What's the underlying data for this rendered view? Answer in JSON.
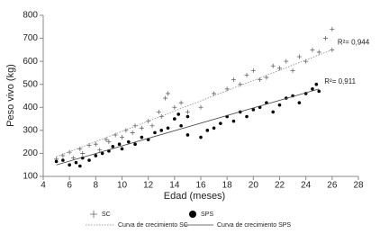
{
  "chart_data": {
    "type": "scatter",
    "x_label": "Edad (meses)",
    "y_label": "Peso vivo (kg)",
    "xlim": [
      4,
      28
    ],
    "xticks": [
      4,
      6,
      8,
      10,
      12,
      14,
      16,
      18,
      20,
      22,
      24,
      26,
      28
    ],
    "ylim": [
      100,
      800
    ],
    "yticks": [
      100,
      200,
      300,
      400,
      500,
      600,
      700,
      800
    ],
    "annotations": [
      "R²= 0,944",
      "R²= 0,911"
    ],
    "series": [
      {
        "name": "SC",
        "marker": "plus",
        "color": "#666666",
        "x": [
          5,
          5.5,
          6,
          6.3,
          6.8,
          7,
          7.5,
          8,
          8.3,
          8.8,
          9,
          9.5,
          10,
          10.3,
          10.8,
          11,
          11.5,
          12,
          12.3,
          12.8,
          13,
          13.3,
          13.5,
          14,
          14.5,
          15,
          16,
          17,
          18,
          18.5,
          19,
          19.5,
          20,
          20.5,
          21,
          21.5,
          22,
          22.5,
          23,
          23.5,
          24,
          24.5,
          25,
          25.5,
          26,
          26
        ],
        "values": [
          175,
          190,
          205,
          180,
          220,
          200,
          235,
          240,
          215,
          260,
          250,
          280,
          270,
          300,
          290,
          320,
          310,
          340,
          320,
          380,
          360,
          440,
          460,
          400,
          420,
          380,
          400,
          460,
          480,
          520,
          500,
          540,
          560,
          520,
          530,
          580,
          570,
          600,
          560,
          620,
          600,
          650,
          640,
          700,
          740,
          650
        ]
      },
      {
        "name": "SPS",
        "marker": "dot",
        "color": "#000000",
        "x": [
          5,
          5.5,
          6,
          6.5,
          6.8,
          7,
          7.5,
          8,
          8.5,
          9,
          9.3,
          9.8,
          10,
          10.5,
          11,
          11.5,
          12,
          12.5,
          13,
          13.5,
          14,
          14.3,
          14.5,
          15,
          15,
          16,
          16.5,
          17,
          17.5,
          18,
          18.5,
          19,
          19.5,
          20,
          20.5,
          21,
          21.5,
          22,
          22.5,
          23,
          23.5,
          24,
          24.5,
          25,
          24.8
        ],
        "values": [
          165,
          170,
          150,
          160,
          145,
          180,
          170,
          190,
          200,
          210,
          230,
          240,
          220,
          250,
          240,
          270,
          260,
          290,
          300,
          310,
          350,
          370,
          320,
          360,
          280,
          270,
          300,
          310,
          330,
          360,
          340,
          380,
          360,
          390,
          400,
          420,
          380,
          410,
          440,
          450,
          420,
          460,
          480,
          470,
          500
        ]
      },
      {
        "name": "Curva de crecimiento SC",
        "type": "line",
        "dash": true,
        "color": "#888888",
        "x": [
          5,
          26
        ],
        "values": [
          185,
          650
        ]
      },
      {
        "name": "Curva de crecimiento SPS",
        "type": "line",
        "dash": false,
        "color": "#444444",
        "x": [
          5,
          25
        ],
        "values": [
          150,
          480
        ]
      }
    ]
  }
}
